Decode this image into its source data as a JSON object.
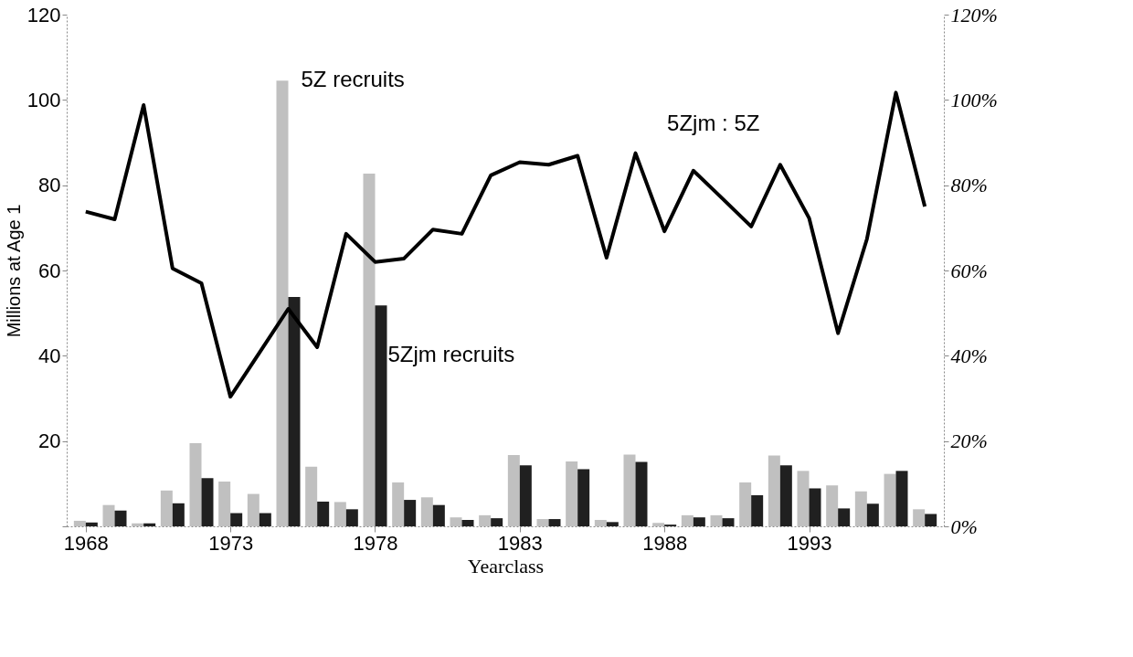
{
  "chart_data": {
    "type": "bar",
    "xlabel": "Yearclass",
    "ylabel": "Millions at Age 1",
    "x": [
      1968,
      1969,
      1970,
      1971,
      1972,
      1973,
      1974,
      1975,
      1976,
      1977,
      1978,
      1979,
      1980,
      1981,
      1982,
      1983,
      1984,
      1985,
      1986,
      1987,
      1988,
      1989,
      1990,
      1991,
      1992,
      1993,
      1994,
      1995,
      1996,
      1997
    ],
    "series": [
      {
        "color": "#c0c0c0",
        "values": [
          1.3,
          5.0,
          0.7,
          8.4,
          19.5,
          10.5,
          7.6,
          104.5,
          14.0,
          5.7,
          82.7,
          10.3,
          6.8,
          2.1,
          2.6,
          16.7,
          1.7,
          15.2,
          1.5,
          16.8,
          0.8,
          2.6,
          2.6,
          10.3,
          16.6,
          13.0,
          9.6,
          8.2,
          12.3,
          4.0
        ]
      },
      {
        "color": "#202020",
        "values": [
          0.9,
          3.7,
          0.7,
          5.4,
          11.3,
          3.1,
          3.1,
          53.8,
          5.8,
          4.0,
          51.8,
          6.2,
          5.0,
          1.5,
          1.9,
          14.3,
          1.7,
          13.4,
          1.0,
          15.1,
          0.4,
          2.1,
          1.9,
          7.3,
          14.3,
          8.9,
          4.2,
          5.3,
          13.0,
          2.9
        ]
      },
      {
        "type": "line",
        "axis": "y2",
        "color": "#000000",
        "values": [
          73.8,
          72,
          98.8,
          60.5,
          57,
          30.4,
          40.7,
          51,
          42,
          68.6,
          62,
          62.8,
          69.6,
          68.6,
          82.3,
          85.4,
          84.8,
          86.9,
          63,
          87.5,
          69.2,
          83.4,
          76.9,
          70.3,
          84.8,
          72.3,
          45.3,
          67.4,
          101.7,
          75
        ]
      }
    ],
    "xlim": [
      1967.5,
      1997.5
    ],
    "xticks": [
      1968,
      1973,
      1978,
      1983,
      1988,
      1993
    ],
    "ylim": [
      0,
      120
    ],
    "yticks": [
      {
        "value": 0,
        "label": null
      },
      20,
      40,
      60,
      80,
      100,
      120
    ],
    "y2lim": [
      0,
      120
    ],
    "y2ticks": [
      {
        "value": 0,
        "label": "0%"
      },
      {
        "value": 20,
        "label": "20%"
      },
      {
        "value": 40,
        "label": "40%"
      },
      {
        "value": 60,
        "label": "60%"
      },
      {
        "value": 80,
        "label": "80%"
      },
      {
        "value": 100,
        "label": "100%"
      },
      {
        "value": 120,
        "label": "120%"
      }
    ],
    "annotations": [
      {
        "text": "5Z recruits",
        "x": 1975,
        "y": 104.5
      },
      {
        "text": "5Zjm recruits",
        "x": 1978,
        "y": 40
      },
      "5Zjm : 5Z"
    ],
    "grid": false,
    "marker": "none",
    "line_style": "solid"
  }
}
